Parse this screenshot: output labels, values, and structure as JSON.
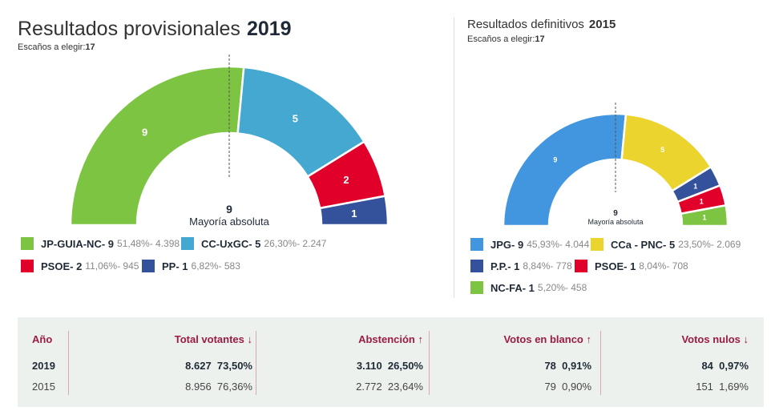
{
  "left": {
    "title": "Resultados provisionales",
    "year": "2019",
    "seats_label": "Escaños a elegir:",
    "seats": "17",
    "majority_value": "9",
    "majority_label": "Mayoría absoluta",
    "parties": [
      {
        "name": "JP-GUIA-NC- 9",
        "seats": 9,
        "stats": "51,48%- 4.398",
        "color": "#7dc443"
      },
      {
        "name": "CC-UxGC- 5",
        "seats": 5,
        "stats": "26,30%- 2.247",
        "color": "#45a8d1"
      },
      {
        "name": "PSOE- 2",
        "seats": 2,
        "stats": "11,06%- 945",
        "color": "#e0002a"
      },
      {
        "name": "PP- 1",
        "seats": 1,
        "stats": "6,82%- 583",
        "color": "#34529b"
      }
    ]
  },
  "right": {
    "title": "Resultados definitivos",
    "year": "2015",
    "seats_label": "Escaños a elegir:",
    "seats": "17",
    "majority_value": "9",
    "majority_label": "Mayoría absoluta",
    "parties": [
      {
        "name": "JPG- 9",
        "seats": 9,
        "stats": "45,93%- 4.044",
        "color": "#4196df"
      },
      {
        "name": "CCa - PNC- 5",
        "seats": 5,
        "stats": "23,50%- 2.069",
        "color": "#ecd42f"
      },
      {
        "name": "P.P.- 1",
        "seats": 1,
        "stats": "8,84%- 778",
        "color": "#34529b"
      },
      {
        "name": "PSOE- 1",
        "seats": 1,
        "stats": "8,04%- 708",
        "color": "#e0002a"
      },
      {
        "name": "NC-FA- 1",
        "seats": 1,
        "stats": "5,20%- 458",
        "color": "#7dc443"
      }
    ]
  },
  "table": {
    "headers": [
      "Año",
      "Total votantes ↓",
      "Abstención ↑",
      "Votos en blanco ↑",
      "Votos nulos ↓"
    ],
    "rows": [
      [
        "2019",
        "8.627  73,50%",
        "3.110  26,50%",
        "78  0,91%",
        "84  0,97%"
      ],
      [
        "2015",
        "8.956  76,36%",
        "2.772  23,64%",
        "79  0,90%",
        "151  1,69%"
      ]
    ]
  }
}
